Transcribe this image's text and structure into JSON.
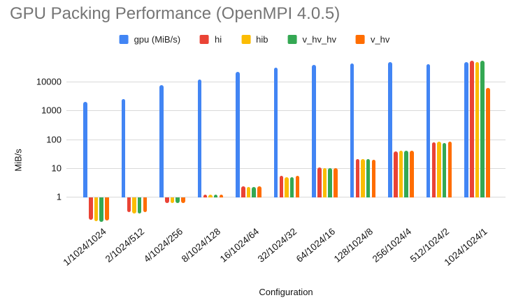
{
  "title": "GPU Packing Performance (OpenMPI 4.0.5)",
  "chart_data": {
    "type": "bar",
    "title": "GPU Packing Performance (OpenMPI 4.0.5)",
    "xlabel": "Configuration",
    "ylabel": "MiB/s",
    "y_scale": "log",
    "y_ticks": [
      1,
      10,
      100,
      1000,
      10000
    ],
    "ylim": [
      0.1,
      60000
    ],
    "grid": true,
    "legend_position": "top",
    "categories": [
      "1/1024/1024",
      "2/1024/512",
      "4/1024/256",
      "8/1024/128",
      "16/1024/64",
      "32/1024/32",
      "64/1024/16",
      "128/1024/8",
      "256/1024/4",
      "512/1024/2",
      "1024/1024/1"
    ],
    "series": [
      {
        "name": "gpu (MiB/s)",
        "color": "#4285F4",
        "values": [
          2000,
          2450,
          7600,
          11800,
          21500,
          30500,
          38500,
          43000,
          48000,
          41000,
          49000
        ]
      },
      {
        "name": "hi",
        "color": "#EA4335",
        "values": [
          0.17,
          0.31,
          0.64,
          1.2,
          2.3,
          5.4,
          10.3,
          20,
          38,
          76,
          53000
        ]
      },
      {
        "name": "hib",
        "color": "#FBBC04",
        "values": [
          0.15,
          0.28,
          0.64,
          1.2,
          2.2,
          4.7,
          10,
          20.5,
          40,
          84,
          48000
        ]
      },
      {
        "name": "v_hv_hv",
        "color": "#34A853",
        "values": [
          0.14,
          0.28,
          0.64,
          1.2,
          2.2,
          4.9,
          10,
          20,
          40,
          73,
          53000
        ]
      },
      {
        "name": "v_hv",
        "color": "#FF6D01",
        "values": [
          0.16,
          0.31,
          0.64,
          1.2,
          2.3,
          5.2,
          10,
          19,
          40,
          84,
          6000
        ]
      }
    ]
  },
  "colors": {
    "title_text": "#757575",
    "axis_text": "#111111",
    "gridline": "#d9d9d9"
  }
}
